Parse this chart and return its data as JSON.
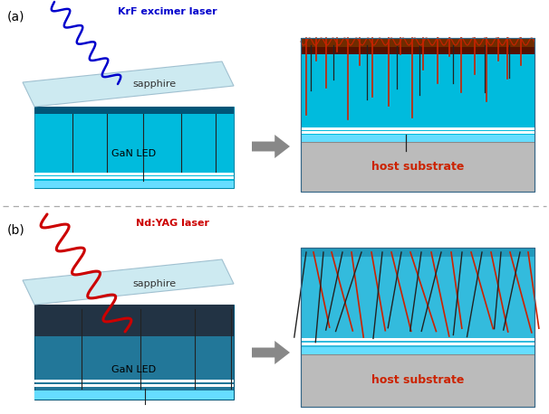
{
  "fig_width": 6.06,
  "fig_height": 4.58,
  "bg_color": "#ffffff",
  "sapphire_color": "#c8e8f0",
  "sapphire_edge": "#99bbcc",
  "gan_cyan": "#00bbdd",
  "gan_dark": "#336677",
  "gan_b_main": "#227799",
  "gan_b_dark_top": "#223344",
  "host_color": "#bbbbbb",
  "host_edge": "#999999",
  "arrow_color": "#888888",
  "label_a": "(a)",
  "label_b": "(b)",
  "laser_a_label": "KrF excimer laser",
  "laser_b_label": "Nd:YAG laser",
  "sapphire_label": "sapphire",
  "gan_label": "GaN LED",
  "host_label": "host substrate",
  "laser_a_color": "#0000cc",
  "laser_b_color": "#cc0000",
  "crack_dark": "#222222",
  "crack_red": "#cc2200",
  "dashed_color": "#aaaaaa",
  "white_stripe": "#ffffff",
  "light_stripe": "#66ddff"
}
